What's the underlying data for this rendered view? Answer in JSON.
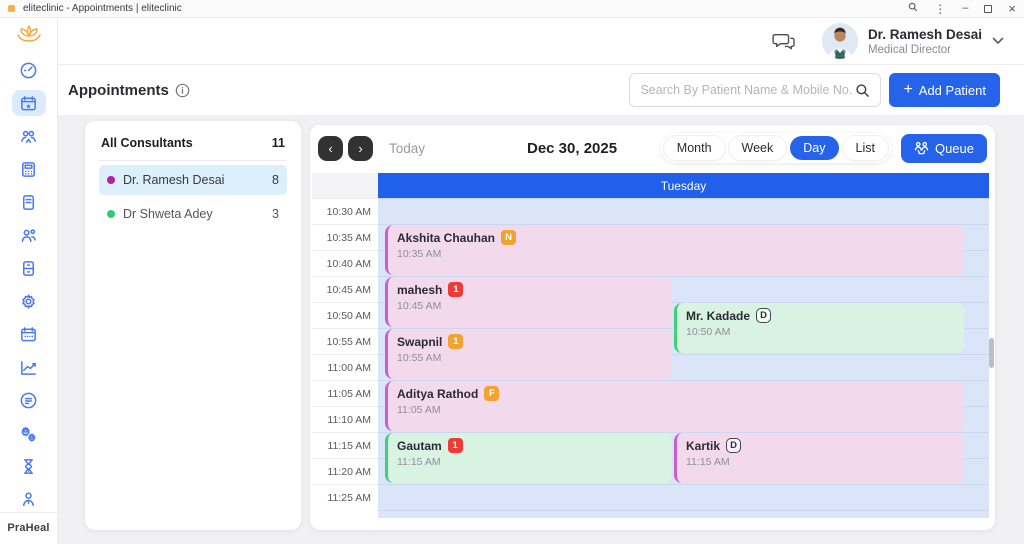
{
  "window": {
    "title": "eliteclinic - Appointments | eliteclinic",
    "controls_icons": [
      "search-icon",
      "kebab-menu-icon",
      "minimize-icon",
      "maximize-icon",
      "close-icon"
    ]
  },
  "sidebar": {
    "brand": "PraHeal",
    "logo_icon": "lotus-icon",
    "icons": [
      "gauge-icon",
      "calendar-star-icon",
      "users-group-icon",
      "calculator-icon",
      "note-icon",
      "people-icon",
      "cabinet-icon",
      "gear-icon",
      "calendar-icon",
      "chart-icon",
      "report-icon",
      "cogs-icon",
      "hourglass-icon",
      "person-icon"
    ],
    "active_index": 1
  },
  "header": {
    "chat_icon": "chat-bubbles-icon",
    "user": {
      "name": "Dr. Ramesh Desai",
      "role": "Medical Director"
    }
  },
  "toolbar": {
    "title": "Appointments",
    "info_icon": "info-icon",
    "search_placeholder": "Search By Patient Name & Mobile No.",
    "add_patient": {
      "plus": "+",
      "label": "Add Patient"
    }
  },
  "consultants": {
    "title": "All Consultants",
    "total": "11",
    "items": [
      {
        "name": "Dr. Ramesh Desai",
        "count": "8",
        "dot_color": "#b31fa8",
        "active": true
      },
      {
        "name": "Dr Shweta Adey",
        "count": "3",
        "dot_color": "#2ecc71",
        "active": false
      }
    ]
  },
  "calendar": {
    "prev": "‹",
    "next": "›",
    "today_label": "Today",
    "date_label": "Dec 30, 2025",
    "views": [
      "Month",
      "Week",
      "Day",
      "List"
    ],
    "active_view": "Day",
    "queue_label": "Queue",
    "queue_icon": "people-network-icon",
    "day_header": "Tuesday",
    "times": [
      "10:30 AM",
      "10:35 AM",
      "10:40 AM",
      "10:45 AM",
      "10:50 AM",
      "10:55 AM",
      "11:00 AM",
      "11:05 AM",
      "11:10 AM",
      "11:15 AM",
      "11:20 AM",
      "11:25 AM"
    ],
    "colors": {
      "primary": "#2563eb",
      "day_bg": "#dbe5f9",
      "pink_event": "#f3d9ec",
      "pink_border": "#c95fc9",
      "green_event": "#d9f3e3",
      "green_border": "#41cf78",
      "amber_badge": "#f0a32f",
      "red_badge": "#ee3b35"
    },
    "events": [
      {
        "name": "Akshita Chauhan",
        "badge": "N",
        "badge_variant": "amber",
        "time": "10:35 AM",
        "variant": "pink",
        "row": 1,
        "span": 2,
        "lane": "full"
      },
      {
        "name": "mahesh",
        "badge": "1",
        "badge_variant": "red",
        "time": "10:45 AM",
        "variant": "pink",
        "row": 3,
        "span": 2,
        "lane": "left"
      },
      {
        "name": "Mr. Kadade",
        "badge": "D",
        "badge_variant": "outline",
        "time": "10:50 AM",
        "variant": "green",
        "row": 4,
        "span": 2,
        "lane": "right"
      },
      {
        "name": "Swapnil",
        "badge": "1",
        "badge_variant": "amber",
        "time": "10:55 AM",
        "variant": "pink",
        "row": 5,
        "span": 2,
        "lane": "left"
      },
      {
        "name": "Aditya Rathod",
        "badge": "F",
        "badge_variant": "amber",
        "time": "11:05 AM",
        "variant": "pink",
        "row": 7,
        "span": 2,
        "lane": "full"
      },
      {
        "name": "Gautam",
        "badge": "1",
        "badge_variant": "red",
        "time": "11:15 AM",
        "variant": "green",
        "row": 9,
        "span": 2,
        "lane": "left"
      },
      {
        "name": "Kartik",
        "badge": "D",
        "badge_variant": "outline",
        "time": "11:15 AM",
        "variant": "pink",
        "row": 9,
        "span": 2,
        "lane": "right"
      }
    ]
  }
}
